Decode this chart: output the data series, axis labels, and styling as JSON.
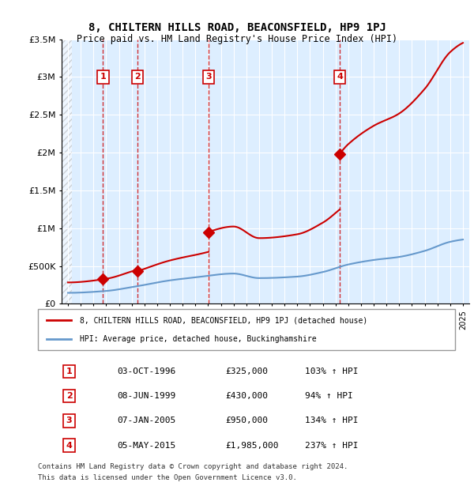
{
  "title": "8, CHILTERN HILLS ROAD, BEACONSFIELD, HP9 1PJ",
  "subtitle": "Price paid vs. HM Land Registry's House Price Index (HPI)",
  "legend_line1": "8, CHILTERN HILLS ROAD, BEACONSFIELD, HP9 1PJ (detached house)",
  "legend_line2": "HPI: Average price, detached house, Buckinghamshire",
  "footer1": "Contains HM Land Registry data © Crown copyright and database right 2024.",
  "footer2": "This data is licensed under the Open Government Licence v3.0.",
  "sales": [
    {
      "num": 1,
      "date": "03-OCT-1996",
      "year": 1996.75,
      "price": 325000,
      "hpi_pct": "103%"
    },
    {
      "num": 2,
      "date": "08-JUN-1999",
      "year": 1999.44,
      "price": 430000,
      "hpi_pct": "94%"
    },
    {
      "num": 3,
      "date": "07-JAN-2005",
      "year": 2005.03,
      "price": 950000,
      "hpi_pct": "134%"
    },
    {
      "num": 4,
      "date": "05-MAY-2015",
      "year": 2015.34,
      "price": 1985000,
      "hpi_pct": "237%"
    }
  ],
  "property_color": "#cc0000",
  "hpi_color": "#6699cc",
  "background_plot": "#ddeeff",
  "hatch_color": "#cccccc",
  "xlim": [
    1993.5,
    2025.5
  ],
  "ylim": [
    0,
    3500000
  ],
  "yticks": [
    0,
    500000,
    1000000,
    1500000,
    2000000,
    2500000,
    3000000,
    3500000
  ],
  "ytick_labels": [
    "£0",
    "£500K",
    "£1M",
    "£1.5M",
    "£2M",
    "£2.5M",
    "£3M",
    "£3.5M"
  ],
  "xticks": [
    1994,
    1995,
    1996,
    1997,
    1998,
    1999,
    2000,
    2001,
    2002,
    2003,
    2004,
    2005,
    2006,
    2007,
    2008,
    2009,
    2010,
    2011,
    2012,
    2013,
    2014,
    2015,
    2016,
    2017,
    2018,
    2019,
    2020,
    2021,
    2022,
    2023,
    2024,
    2025
  ]
}
